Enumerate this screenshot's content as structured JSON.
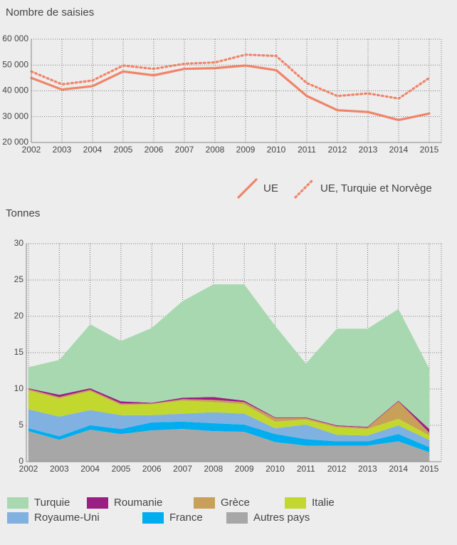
{
  "chart_data": [
    {
      "type": "line",
      "title": "Nombre de saisies",
      "x": [
        2002,
        2003,
        2004,
        2005,
        2006,
        2007,
        2008,
        2009,
        2010,
        2011,
        2012,
        2013,
        2014,
        2015
      ],
      "xlim": [
        2002,
        2015
      ],
      "ylim": [
        20000,
        60000
      ],
      "yticks": [
        {
          "value": 20000,
          "label": "20 000"
        },
        {
          "value": 30000,
          "label": "30 000"
        },
        {
          "value": 40000,
          "label": "40 000"
        },
        {
          "value": 50000,
          "label": "50 000"
        },
        {
          "value": 60000,
          "label": "60 000"
        }
      ],
      "grid": true,
      "series": [
        {
          "name": "UE",
          "color": "#f08468",
          "style": "solid",
          "values": [
            45000,
            40500,
            41800,
            47500,
            46000,
            48500,
            48800,
            49800,
            48000,
            38000,
            32500,
            31800,
            28700,
            31200
          ]
        },
        {
          "name": "UE, Turquie et Norvège",
          "color": "#f08468",
          "style": "dotted",
          "values": [
            47500,
            42500,
            44000,
            49800,
            48500,
            50500,
            51000,
            54000,
            53500,
            43000,
            38000,
            39000,
            37000,
            45000
          ]
        }
      ]
    },
    {
      "type": "area",
      "stacked": true,
      "title": "Tonnes",
      "x": [
        2002,
        2003,
        2004,
        2005,
        2006,
        2007,
        2008,
        2009,
        2010,
        2011,
        2012,
        2013,
        2014,
        2015
      ],
      "xlim": [
        2002,
        2015
      ],
      "ylim": [
        0,
        30
      ],
      "yticks": [
        0,
        5,
        10,
        15,
        20,
        25,
        30
      ],
      "grid": true,
      "series": [
        {
          "name": "Autres pays",
          "color": "#a7a7a7",
          "values": [
            4.2,
            3.0,
            4.4,
            3.8,
            4.3,
            4.5,
            4.2,
            4.1,
            2.7,
            2.2,
            2.2,
            2.2,
            2.8,
            1.3
          ]
        },
        {
          "name": "France",
          "color": "#00aeef",
          "values": [
            0.4,
            0.5,
            0.6,
            0.7,
            1.1,
            1.0,
            1.1,
            1.0,
            1.1,
            0.9,
            0.6,
            0.6,
            1.0,
            0.7
          ]
        },
        {
          "name": "Royaume-Uni",
          "color": "#80b1e0",
          "values": [
            2.6,
            2.7,
            2.1,
            1.9,
            1.0,
            1.1,
            1.5,
            1.5,
            0.8,
            2.0,
            0.9,
            0.8,
            1.2,
            1.0
          ]
        },
        {
          "name": "Italie",
          "color": "#c3d82e",
          "values": [
            2.6,
            2.5,
            2.6,
            1.4,
            1.5,
            1.8,
            1.4,
            1.3,
            0.9,
            0.7,
            1.0,
            0.9,
            0.9,
            0.6
          ]
        },
        {
          "name": "Grèce",
          "color": "#c9a05a",
          "values": [
            0.2,
            0.2,
            0.2,
            0.2,
            0.1,
            0.2,
            0.3,
            0.3,
            0.5,
            0.2,
            0.2,
            0.2,
            2.4,
            0.4
          ]
        },
        {
          "name": "Roumanie",
          "color": "#9b1f82",
          "values": [
            0.1,
            0.3,
            0.2,
            0.3,
            0.1,
            0.2,
            0.4,
            0.2,
            0.1,
            0.1,
            0.1,
            0.1,
            0.1,
            0.5
          ]
        },
        {
          "name": "Turquie",
          "color": "#a8d8b0",
          "values": [
            2.9,
            4.8,
            8.8,
            8.3,
            10.3,
            13.3,
            15.5,
            16.0,
            12.6,
            7.4,
            13.3,
            13.5,
            12.6,
            8.3
          ]
        }
      ]
    }
  ]
}
